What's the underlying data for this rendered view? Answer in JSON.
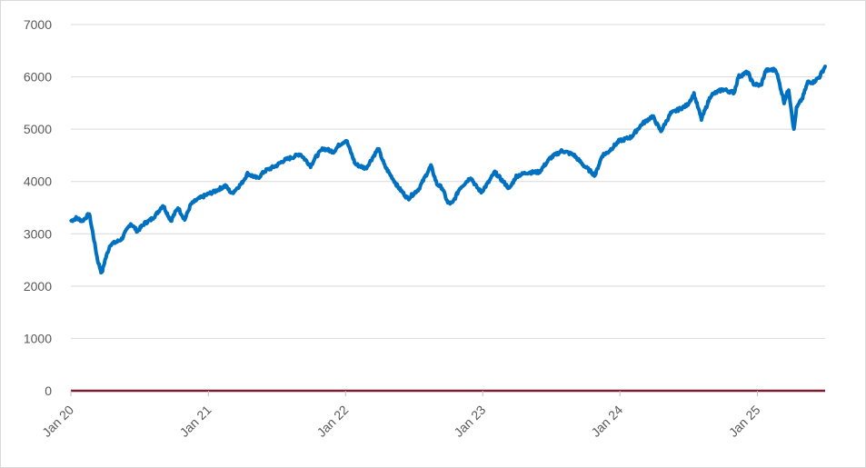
{
  "chart_data": {
    "type": "line",
    "title": "",
    "xlabel": "",
    "ylabel": "",
    "ylim": [
      0,
      7000
    ],
    "y_ticks": [
      0,
      1000,
      2000,
      3000,
      4000,
      5000,
      6000,
      7000
    ],
    "y_tick_labels": [
      "0",
      "1000",
      "2000",
      "3000",
      "4000",
      "5000",
      "6000",
      "7000"
    ],
    "x_ticks": [
      "2020-01-01",
      "2021-01-01",
      "2022-01-01",
      "2023-01-01",
      "2024-01-01",
      "2025-01-01"
    ],
    "x_tick_labels": [
      "Jan 20",
      "Jan 21",
      "Jan 22",
      "Jan 23",
      "Jan 24",
      "Jan 25"
    ],
    "xlim": [
      "2020-01-01",
      "2025-06-30"
    ],
    "grid": true,
    "legend": "none",
    "colors": {
      "series": "#0070c0",
      "baseline": "#7b1c33",
      "grid": "#d9d9d9",
      "text": "#595959"
    },
    "series": [
      {
        "x": [
          "2020-01-02",
          "2020-01-15",
          "2020-02-01",
          "2020-02-19",
          "2020-03-01",
          "2020-03-12",
          "2020-03-23",
          "2020-04-01",
          "2020-04-15",
          "2020-05-01",
          "2020-05-15",
          "2020-06-08",
          "2020-06-26",
          "2020-07-15",
          "2020-08-01",
          "2020-08-15",
          "2020-09-02",
          "2020-09-23",
          "2020-10-12",
          "2020-10-30",
          "2020-11-15",
          "2020-12-01",
          "2020-12-31",
          "2021-01-15",
          "2021-02-15",
          "2021-03-04",
          "2021-03-31",
          "2021-04-15",
          "2021-05-12",
          "2021-05-31",
          "2021-06-30",
          "2021-07-20",
          "2021-08-15",
          "2021-09-02",
          "2021-09-30",
          "2021-10-15",
          "2021-11-02",
          "2021-11-30",
          "2021-12-15",
          "2022-01-03",
          "2022-01-27",
          "2022-02-24",
          "2022-03-29",
          "2022-04-15",
          "2022-05-20",
          "2022-06-16",
          "2022-07-15",
          "2022-08-16",
          "2022-09-01",
          "2022-09-15",
          "2022-09-30",
          "2022-10-12",
          "2022-11-01",
          "2022-11-30",
          "2022-12-15",
          "2022-12-28",
          "2023-01-15",
          "2023-02-02",
          "2023-03-13",
          "2023-03-31",
          "2023-04-28",
          "2023-05-31",
          "2023-06-30",
          "2023-07-31",
          "2023-08-31",
          "2023-09-29",
          "2023-10-27",
          "2023-11-15",
          "2023-11-30",
          "2023-12-29",
          "2024-01-31",
          "2024-02-29",
          "2024-03-28",
          "2024-04-19",
          "2024-05-15",
          "2024-06-28",
          "2024-07-16",
          "2024-08-05",
          "2024-08-30",
          "2024-09-30",
          "2024-10-31",
          "2024-11-11",
          "2024-12-06",
          "2024-12-20",
          "2025-01-10",
          "2025-01-23",
          "2025-02-19",
          "2025-03-13",
          "2025-03-25",
          "2025-04-08",
          "2025-04-15",
          "2025-05-01",
          "2025-05-15",
          "2025-05-30",
          "2025-06-15",
          "2025-06-30"
        ],
        "values": [
          3250,
          3300,
          3250,
          3380,
          2950,
          2500,
          2240,
          2500,
          2800,
          2840,
          2900,
          3200,
          3050,
          3200,
          3270,
          3370,
          3550,
          3250,
          3500,
          3270,
          3560,
          3650,
          3760,
          3800,
          3920,
          3770,
          3970,
          4150,
          4060,
          4200,
          4300,
          4400,
          4470,
          4530,
          4300,
          4480,
          4630,
          4570,
          4700,
          4790,
          4330,
          4250,
          4630,
          4300,
          3900,
          3670,
          3860,
          4300,
          3950,
          3880,
          3590,
          3580,
          3870,
          4080,
          3900,
          3800,
          3970,
          4180,
          3860,
          4100,
          4170,
          4180,
          4450,
          4590,
          4510,
          4290,
          4120,
          4500,
          4560,
          4770,
          4850,
          5100,
          5250,
          4960,
          5300,
          5460,
          5670,
          5190,
          5650,
          5760,
          5700,
          6000,
          6090,
          5870,
          5830,
          6120,
          6140,
          5520,
          5770,
          4980,
          5400,
          5600,
          5900,
          5900,
          6000,
          6200
        ]
      }
    ]
  }
}
